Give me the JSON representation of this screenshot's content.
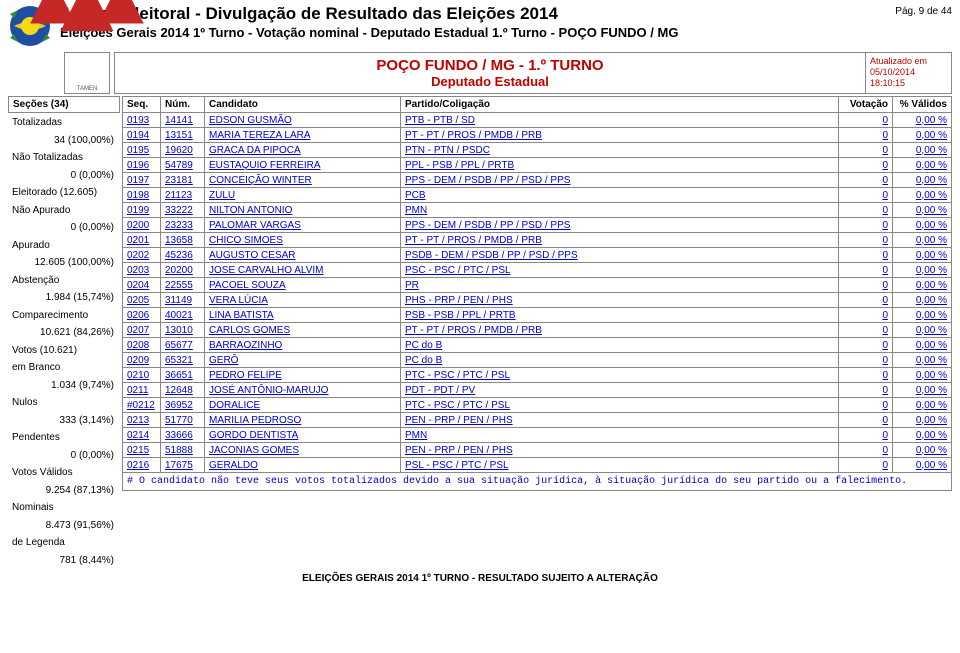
{
  "header": {
    "title": "Justiça Eleitoral - Divulgação de Resultado das Eleições 2014",
    "subtitle": "Eleições Gerais 2014 1º Turno - Votação nominal - Deputado Estadual 1.º Turno - POÇO FUNDO / MG",
    "page": "Pág. 9 de 44"
  },
  "banner": {
    "logo_text": "TAMEN",
    "title": "POÇO FUNDO / MG - 1.º TURNO",
    "subtitle": "Deputado Estadual",
    "updated_label": "Atualizado em",
    "updated_date": "05/10/2014",
    "updated_time": "18:10:15"
  },
  "left": {
    "header": "Seções  (34)",
    "items": [
      {
        "label": "Totalizadas",
        "indent": false
      },
      {
        "label": "34 (100,00%)",
        "indent": true
      },
      {
        "label": "Não Totalizadas",
        "indent": false
      },
      {
        "label": "0 (0,00%)",
        "indent": true
      },
      {
        "label": "Eleitorado (12.605)",
        "indent": false
      },
      {
        "label": "Não Apurado",
        "indent": false
      },
      {
        "label": "0 (0,00%)",
        "indent": true
      },
      {
        "label": "Apurado",
        "indent": false
      },
      {
        "label": "12.605 (100,00%)",
        "indent": true
      },
      {
        "label": "Abstenção",
        "indent": false
      },
      {
        "label": "1.984 (15,74%)",
        "indent": true
      },
      {
        "label": "Comparecimento",
        "indent": false
      },
      {
        "label": "10.621 (84,26%)",
        "indent": true
      },
      {
        "label": "Votos (10.621)",
        "indent": false
      },
      {
        "label": "em Branco",
        "indent": false
      },
      {
        "label": "1.034 (9,74%)",
        "indent": true
      },
      {
        "label": "Nulos",
        "indent": false
      },
      {
        "label": "333 (3,14%)",
        "indent": true
      },
      {
        "label": "Pendentes",
        "indent": false
      },
      {
        "label": "0 (0,00%)",
        "indent": true
      },
      {
        "label": "Votos Válidos",
        "indent": false
      },
      {
        "label": "9.254 (87,13%)",
        "indent": true
      },
      {
        "label": "Nominais",
        "indent": false
      },
      {
        "label": "8.473 (91,56%)",
        "indent": true
      },
      {
        "label": "de Legenda",
        "indent": false
      },
      {
        "label": "781 (8,44%)",
        "indent": true
      }
    ]
  },
  "table": {
    "columns": {
      "seq": "Seq.",
      "num": "Núm.",
      "cand": "Candidato",
      "part": "Partido/Coligação",
      "vot": "Votação",
      "val": "% Válidos"
    },
    "rows": [
      {
        "seq": "0193",
        "num": "14141",
        "cand": "EDSON GUSMÃO",
        "part": "PTB - PTB / SD",
        "vot": "0",
        "val": "0,00 %"
      },
      {
        "seq": "0194",
        "num": "13151",
        "cand": "MARIA TEREZA LARA",
        "part": "PT - PT / PROS / PMDB / PRB",
        "vot": "0",
        "val": "0,00 %"
      },
      {
        "seq": "0195",
        "num": "19620",
        "cand": "GRACA DA PIPOCA",
        "part": "PTN - PTN / PSDC",
        "vot": "0",
        "val": "0,00 %"
      },
      {
        "seq": "0196",
        "num": "54789",
        "cand": "EUSTAQUIO FERREIRA",
        "part": "PPL - PSB / PPL / PRTB",
        "vot": "0",
        "val": "0,00 %"
      },
      {
        "seq": "0197",
        "num": "23181",
        "cand": "CONCEIÇÃO WINTER",
        "part": "PPS - DEM / PSDB / PP / PSD / PPS",
        "vot": "0",
        "val": "0,00 %"
      },
      {
        "seq": "0198",
        "num": "21123",
        "cand": "ZULU",
        "part": "PCB",
        "vot": "0",
        "val": "0,00 %"
      },
      {
        "seq": "0199",
        "num": "33222",
        "cand": "NILTON ANTONIO",
        "part": "PMN",
        "vot": "0",
        "val": "0,00 %"
      },
      {
        "seq": "0200",
        "num": "23233",
        "cand": "PALOMAR VARGAS",
        "part": "PPS - DEM / PSDB / PP / PSD / PPS",
        "vot": "0",
        "val": "0,00 %"
      },
      {
        "seq": "0201",
        "num": "13658",
        "cand": "CHICO SIMOES",
        "part": "PT - PT / PROS / PMDB / PRB",
        "vot": "0",
        "val": "0,00 %"
      },
      {
        "seq": "0202",
        "num": "45236",
        "cand": "AUGUSTO CESAR",
        "part": "PSDB - DEM / PSDB / PP / PSD / PPS",
        "vot": "0",
        "val": "0,00 %"
      },
      {
        "seq": "0203",
        "num": "20200",
        "cand": "JOSE CARVALHO ALVIM",
        "part": "PSC - PSC / PTC / PSL",
        "vot": "0",
        "val": "0,00 %"
      },
      {
        "seq": "0204",
        "num": "22555",
        "cand": "PACOEL SOUZA",
        "part": "PR",
        "vot": "0",
        "val": "0,00 %"
      },
      {
        "seq": "0205",
        "num": "31149",
        "cand": "VERA LÚCIA",
        "part": "PHS - PRP / PEN / PHS",
        "vot": "0",
        "val": "0,00 %"
      },
      {
        "seq": "0206",
        "num": "40021",
        "cand": "LINA BATISTA",
        "part": "PSB - PSB / PPL / PRTB",
        "vot": "0",
        "val": "0,00 %"
      },
      {
        "seq": "0207",
        "num": "13010",
        "cand": "CARLOS GOMES",
        "part": "PT - PT / PROS / PMDB / PRB",
        "vot": "0",
        "val": "0,00 %"
      },
      {
        "seq": "0208",
        "num": "65677",
        "cand": "BARRAOZINHO",
        "part": "PC do B",
        "vot": "0",
        "val": "0,00 %"
      },
      {
        "seq": "0209",
        "num": "65321",
        "cand": "GERÔ",
        "part": "PC do B",
        "vot": "0",
        "val": "0,00 %"
      },
      {
        "seq": "0210",
        "num": "36651",
        "cand": "PEDRO FELIPE",
        "part": "PTC - PSC / PTC / PSL",
        "vot": "0",
        "val": "0,00 %"
      },
      {
        "seq": "0211",
        "num": "12648",
        "cand": "JOSÉ ANTÔNIO-MARUJO",
        "part": "PDT - PDT / PV",
        "vot": "0",
        "val": "0,00 %"
      },
      {
        "seq": "#0212",
        "num": "36952",
        "cand": "DORALICE",
        "part": "PTC - PSC / PTC / PSL",
        "vot": "0",
        "val": "0,00 %"
      },
      {
        "seq": "0213",
        "num": "51770",
        "cand": "MARILIA PEDROSO",
        "part": "PEN - PRP / PEN / PHS",
        "vot": "0",
        "val": "0,00 %"
      },
      {
        "seq": "0214",
        "num": "33666",
        "cand": "GORDO DENTISTA",
        "part": "PMN",
        "vot": "0",
        "val": "0,00 %"
      },
      {
        "seq": "0215",
        "num": "51888",
        "cand": "JACONIAS GOMES",
        "part": "PEN - PRP / PEN / PHS",
        "vot": "0",
        "val": "0,00 %"
      },
      {
        "seq": "0216",
        "num": "17675",
        "cand": "GERALDO",
        "part": "PSL - PSC / PTC / PSL",
        "vot": "0",
        "val": "0,00 %"
      }
    ],
    "footnote": "# O candidato não teve seus votos totalizados devido a sua situação jurídica, à situação jurídica do seu partido ou a falecimento."
  },
  "footer": "ELEIÇÕES GERAIS 2014 1º TURNO - RESULTADO SUJEITO A ALTERAÇÃO",
  "colors": {
    "link": "#0000d0",
    "accent": "#c00000",
    "border": "#888888",
    "bg": "#ffffff"
  }
}
